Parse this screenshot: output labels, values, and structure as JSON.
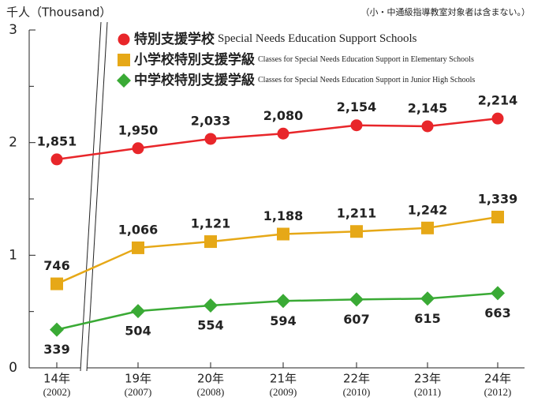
{
  "chart_data": {
    "type": "line",
    "y_axis_label": "千人（Thousand）",
    "note": "（小・中通級指導教室対象者は含まない。）",
    "categories": [
      "14年",
      "19年",
      "20年",
      "21年",
      "22年",
      "23年",
      "24年"
    ],
    "category_sublabels": [
      "(2002)",
      "(2007)",
      "(2008)",
      "(2009)",
      "(2010)",
      "(2011)",
      "(2012)"
    ],
    "ylim": [
      0,
      3
    ],
    "yticks": [
      0,
      1,
      2,
      3
    ],
    "yminor_ticks": [
      0.5,
      1.5,
      2.5
    ],
    "series": [
      {
        "name": "特別支援学校",
        "name_en": "Special Needs Education Support Schools",
        "color": "#e8262a",
        "marker": "circle",
        "values": [
          1.851,
          1.95,
          2.033,
          2.08,
          2.154,
          2.145,
          2.214
        ],
        "value_labels": [
          "1,851",
          "1,950",
          "2,033",
          "2,080",
          "2,154",
          "2,145",
          "2,214"
        ]
      },
      {
        "name": "小学校特別支援学級",
        "name_en": "Classes for Special Needs Education Support in Elementary Schools",
        "color": "#e6a817",
        "marker": "square",
        "values": [
          0.746,
          1.066,
          1.121,
          1.188,
          1.211,
          1.242,
          1.339
        ],
        "value_labels": [
          "746",
          "1,066",
          "1,121",
          "1,188",
          "1,211",
          "1,242",
          "1,339"
        ]
      },
      {
        "name": "中学校特別支援学級",
        "name_en": "Classes for Special Needs Education Support in Junior High Schools",
        "color": "#3aaa35",
        "marker": "diamond",
        "values": [
          0.339,
          0.504,
          0.554,
          0.594,
          0.607,
          0.615,
          0.663
        ],
        "value_labels": [
          "339",
          "504",
          "554",
          "594",
          "607",
          "615",
          "663"
        ]
      }
    ]
  }
}
